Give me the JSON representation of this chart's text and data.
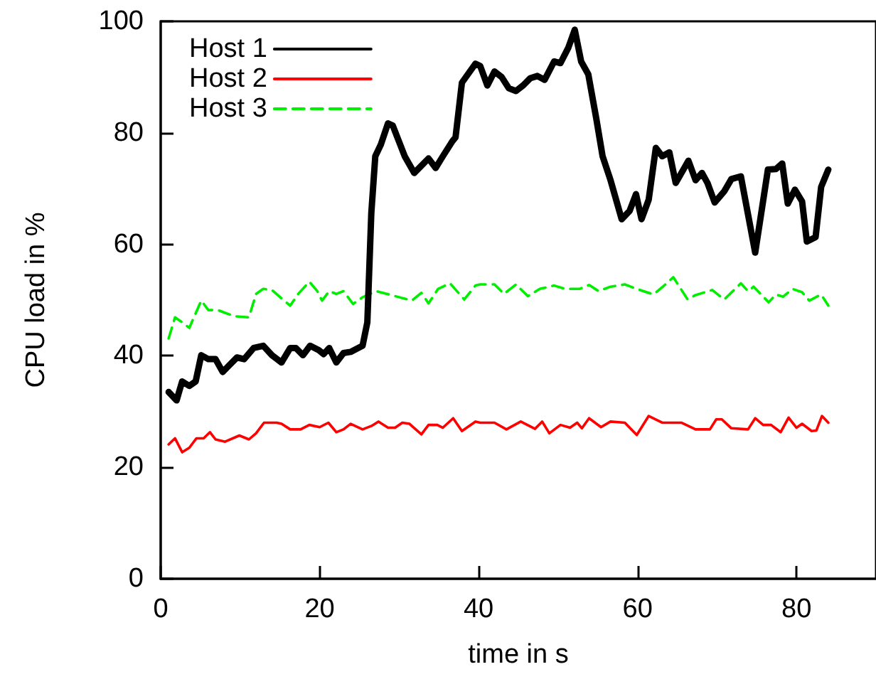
{
  "chart_data": {
    "type": "line",
    "xlabel": "time in s",
    "ylabel": "CPU load in %",
    "xlim": [
      0,
      90
    ],
    "xticks": [
      0,
      20,
      40,
      60,
      80
    ],
    "ylim": [
      0,
      100
    ],
    "yticks": [
      0,
      20,
      40,
      60,
      80,
      100
    ],
    "grid": false,
    "legend": "top left",
    "marker": "none",
    "series": [
      {
        "name": "Host 1",
        "color": "#000000",
        "line_style": "solid",
        "x": [
          1.0,
          2.0,
          2.7,
          3.6,
          4.4,
          5.1,
          6.0,
          6.9,
          7.8,
          8.7,
          9.6,
          10.5,
          11.7,
          12.9,
          14.0,
          15.2,
          16.3,
          17.0,
          17.9,
          18.8,
          19.9,
          20.5,
          21.2,
          22.1,
          23.0,
          23.9,
          25.4,
          26.0,
          26.5,
          27.0,
          27.7,
          28.6,
          29.2,
          30.7,
          31.9,
          33.7,
          34.6,
          35.5,
          36.7,
          37.1,
          37.9,
          39.6,
          40.2,
          41.1,
          42.0,
          42.9,
          43.8,
          44.7,
          45.6,
          46.5,
          47.4,
          48.3,
          49.5,
          50.3,
          51.3,
          52.1,
          52.9,
          53.8,
          54.8,
          55.6,
          56.6,
          58.0,
          59.0,
          59.8,
          60.5,
          61.4,
          62.3,
          63.1,
          64.0,
          64.8,
          66.4,
          67.3,
          68.1,
          68.8,
          69.7,
          70.9,
          71.8,
          73.0,
          74.8,
          76.4,
          77.4,
          78.2,
          78.9,
          79.8,
          80.7,
          81.3,
          82.4,
          83.1,
          84.0
        ],
        "values": [
          33.5,
          32,
          35.4,
          34.6,
          35.4,
          40.1,
          39.4,
          39.4,
          37.1,
          38.4,
          39.7,
          39.4,
          41.4,
          41.8,
          40.1,
          38.8,
          41.4,
          41.4,
          40.1,
          41.8,
          41,
          40.3,
          41.4,
          38.8,
          40.5,
          40.7,
          41.8,
          46,
          65.6,
          75.8,
          77.9,
          81.7,
          81.3,
          75.8,
          72.8,
          75.4,
          73.7,
          75.8,
          78.5,
          79.2,
          89,
          92.4,
          92,
          88.5,
          91,
          90,
          88,
          87.5,
          88.5,
          89.8,
          90.2,
          89.5,
          92.8,
          92.5,
          95.3,
          98.5,
          92.8,
          90.5,
          82.6,
          75.8,
          71.5,
          64.5,
          66,
          69,
          64.5,
          68,
          77.3,
          75.8,
          76.5,
          71,
          75,
          71.5,
          72.8,
          71,
          67.5,
          69.5,
          71.7,
          72.2,
          58.5,
          73.4,
          73.5,
          74.5,
          67.3,
          69.8,
          67.7,
          60.5,
          61.3,
          70.3,
          73.4
        ]
      },
      {
        "name": "Host 2",
        "color": "#ff0000",
        "line_style": "solid",
        "x": [
          1.0,
          1.8,
          2.7,
          3.6,
          4.5,
          5.4,
          6.2,
          6.9,
          8.1,
          9.9,
          11.1,
          12.0,
          13.0,
          14.6,
          15.2,
          16.3,
          17.6,
          18.7,
          20.0,
          21.1,
          22.1,
          23.0,
          23.9,
          25.4,
          26.5,
          27.4,
          28.6,
          29.5,
          30.4,
          31.3,
          32.8,
          33.7,
          34.8,
          35.5,
          36.8,
          37.9,
          39.6,
          40.2,
          42.0,
          43.5,
          45.3,
          47.1,
          48.0,
          48.9,
          50.3,
          51.5,
          52.4,
          53.0,
          53.9,
          55.4,
          56.6,
          58.4,
          59.9,
          61.4,
          63.1,
          65.5,
          67.3,
          69.1,
          69.9,
          70.6,
          71.8,
          73.9,
          74.8,
          75.8,
          76.8,
          78.0,
          79.0,
          80.0,
          80.7,
          81.9,
          82.5,
          83.2,
          84.0
        ],
        "values": [
          24.1,
          25.2,
          22.7,
          23.5,
          25.2,
          25.2,
          26.3,
          25,
          24.6,
          25.7,
          25,
          26.1,
          28,
          28,
          27.8,
          26.8,
          26.8,
          27.6,
          27.2,
          28,
          26.3,
          26.8,
          27.8,
          26.8,
          27.4,
          28.2,
          27.1,
          27.1,
          28,
          27.8,
          25.9,
          27.6,
          27.6,
          27.1,
          28.8,
          26.5,
          28.2,
          28,
          28,
          26.8,
          28.2,
          26.9,
          28.2,
          26.1,
          27.6,
          27.1,
          28,
          27,
          28.8,
          27.2,
          28.2,
          28,
          25.8,
          29.2,
          28,
          28,
          26.8,
          26.8,
          28.6,
          28.6,
          27,
          26.8,
          28.8,
          27.6,
          27.6,
          26.3,
          28.9,
          27.1,
          27.8,
          26.5,
          26.6,
          29.2,
          28
        ]
      },
      {
        "name": "Host 3",
        "color": "#00ee00",
        "line_style": "dashed",
        "x": [
          1.0,
          1.8,
          2.7,
          3.6,
          5.1,
          6.0,
          7.2,
          8.1,
          9.3,
          11.1,
          12.0,
          12.9,
          14.0,
          15.2,
          16.3,
          17.3,
          18.7,
          19.7,
          20.3,
          21.2,
          22.1,
          23.0,
          24.2,
          25.4,
          27.1,
          29.5,
          31.6,
          32.8,
          33.7,
          34.9,
          36.4,
          38.2,
          39.6,
          40.2,
          42.0,
          43.2,
          44.7,
          46.2,
          47.7,
          49.5,
          50.9,
          52.7,
          53.9,
          55.1,
          56.6,
          58.4,
          59.9,
          62.0,
          63.1,
          64.5,
          66.3,
          67.3,
          69.4,
          70.9,
          73.0,
          73.9,
          74.6,
          76.5,
          77.4,
          78.3,
          79.5,
          80.7,
          81.6,
          83.1,
          84.0
        ],
        "values": [
          43.1,
          46.9,
          46,
          45,
          49.9,
          48.2,
          48.2,
          47.7,
          47.1,
          46.9,
          51.1,
          52,
          51.8,
          50.3,
          49,
          51.1,
          53.3,
          51.6,
          49.9,
          51.6,
          51.1,
          51.6,
          49.3,
          50.5,
          51.6,
          50.7,
          49.9,
          51.3,
          49.4,
          52,
          53,
          50.1,
          52.6,
          52.8,
          52.8,
          51.1,
          52.8,
          50.7,
          52,
          52.6,
          52,
          52,
          52.7,
          51.6,
          52.4,
          52.8,
          52,
          51,
          52.3,
          54.1,
          50.1,
          50.9,
          51.8,
          50.1,
          53,
          51.6,
          52.4,
          49.6,
          51,
          50.6,
          52,
          51.4,
          49.9,
          51,
          49
        ]
      }
    ]
  }
}
